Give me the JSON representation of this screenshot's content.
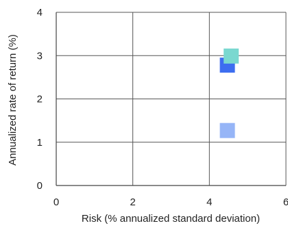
{
  "chart_data": {
    "type": "scatter",
    "title": "",
    "xlabel": "Risk (% annualized standard deviation)",
    "ylabel": "Annualized rate of return (%)",
    "xlim": [
      0,
      6
    ],
    "ylim": [
      0,
      4
    ],
    "x_ticks": [
      0,
      2,
      4,
      6
    ],
    "y_ticks": [
      0,
      1,
      2,
      3,
      4
    ],
    "grid": true,
    "legend": false,
    "marker": "square",
    "points": [
      {
        "x": 4.47,
        "y": 2.78,
        "color": "#3d6ef0"
      },
      {
        "x": 4.47,
        "y": 1.27,
        "color": "#96b5f7"
      },
      {
        "x": 4.57,
        "y": 2.99,
        "color": "#7ad8d0"
      }
    ]
  }
}
